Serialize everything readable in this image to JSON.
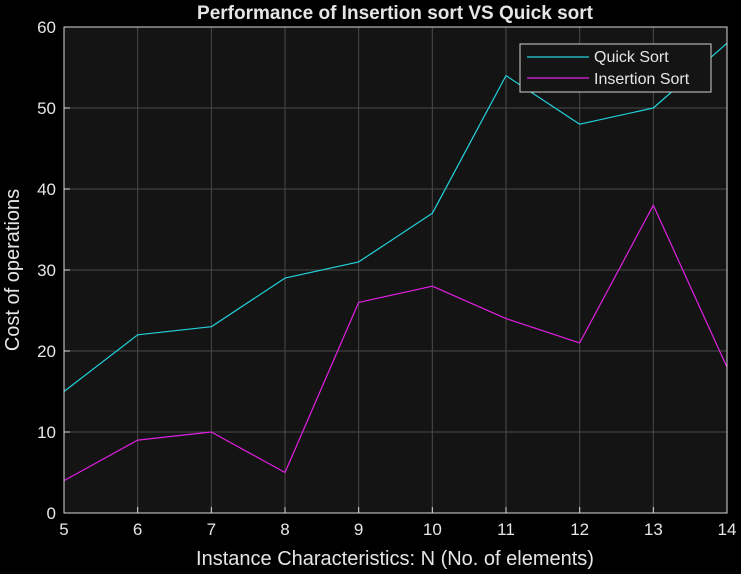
{
  "chart_data": {
    "type": "line",
    "title": "Performance of Insertion sort VS Quick sort",
    "xlabel": "Instance Characteristics: N (No. of elements)",
    "ylabel": "Cost of operations",
    "x": [
      5,
      6,
      7,
      8,
      9,
      10,
      11,
      12,
      13,
      14
    ],
    "xlim": [
      5,
      14
    ],
    "ylim": [
      0,
      60
    ],
    "xticks": [
      "5",
      "6",
      "7",
      "8",
      "9",
      "10",
      "11",
      "12",
      "13",
      "14"
    ],
    "yticks": [
      "0",
      "10",
      "20",
      "30",
      "40",
      "50",
      "60"
    ],
    "grid": true,
    "legend_position": "top-right",
    "series": [
      {
        "name": "Quick Sort",
        "color": "#22d3dc",
        "values": [
          15,
          22,
          23,
          29,
          31,
          37,
          54,
          48,
          50,
          58
        ]
      },
      {
        "name": "Insertion Sort",
        "color": "#e020e0",
        "values": [
          4,
          9,
          10,
          5,
          26,
          28,
          24,
          21,
          38,
          18
        ]
      }
    ],
    "colors": {
      "background": "#000000",
      "plot_area": "#141414",
      "axis": "#d9d9d9",
      "grid": "#4a4a4a",
      "text": "#e6e6e6"
    }
  }
}
